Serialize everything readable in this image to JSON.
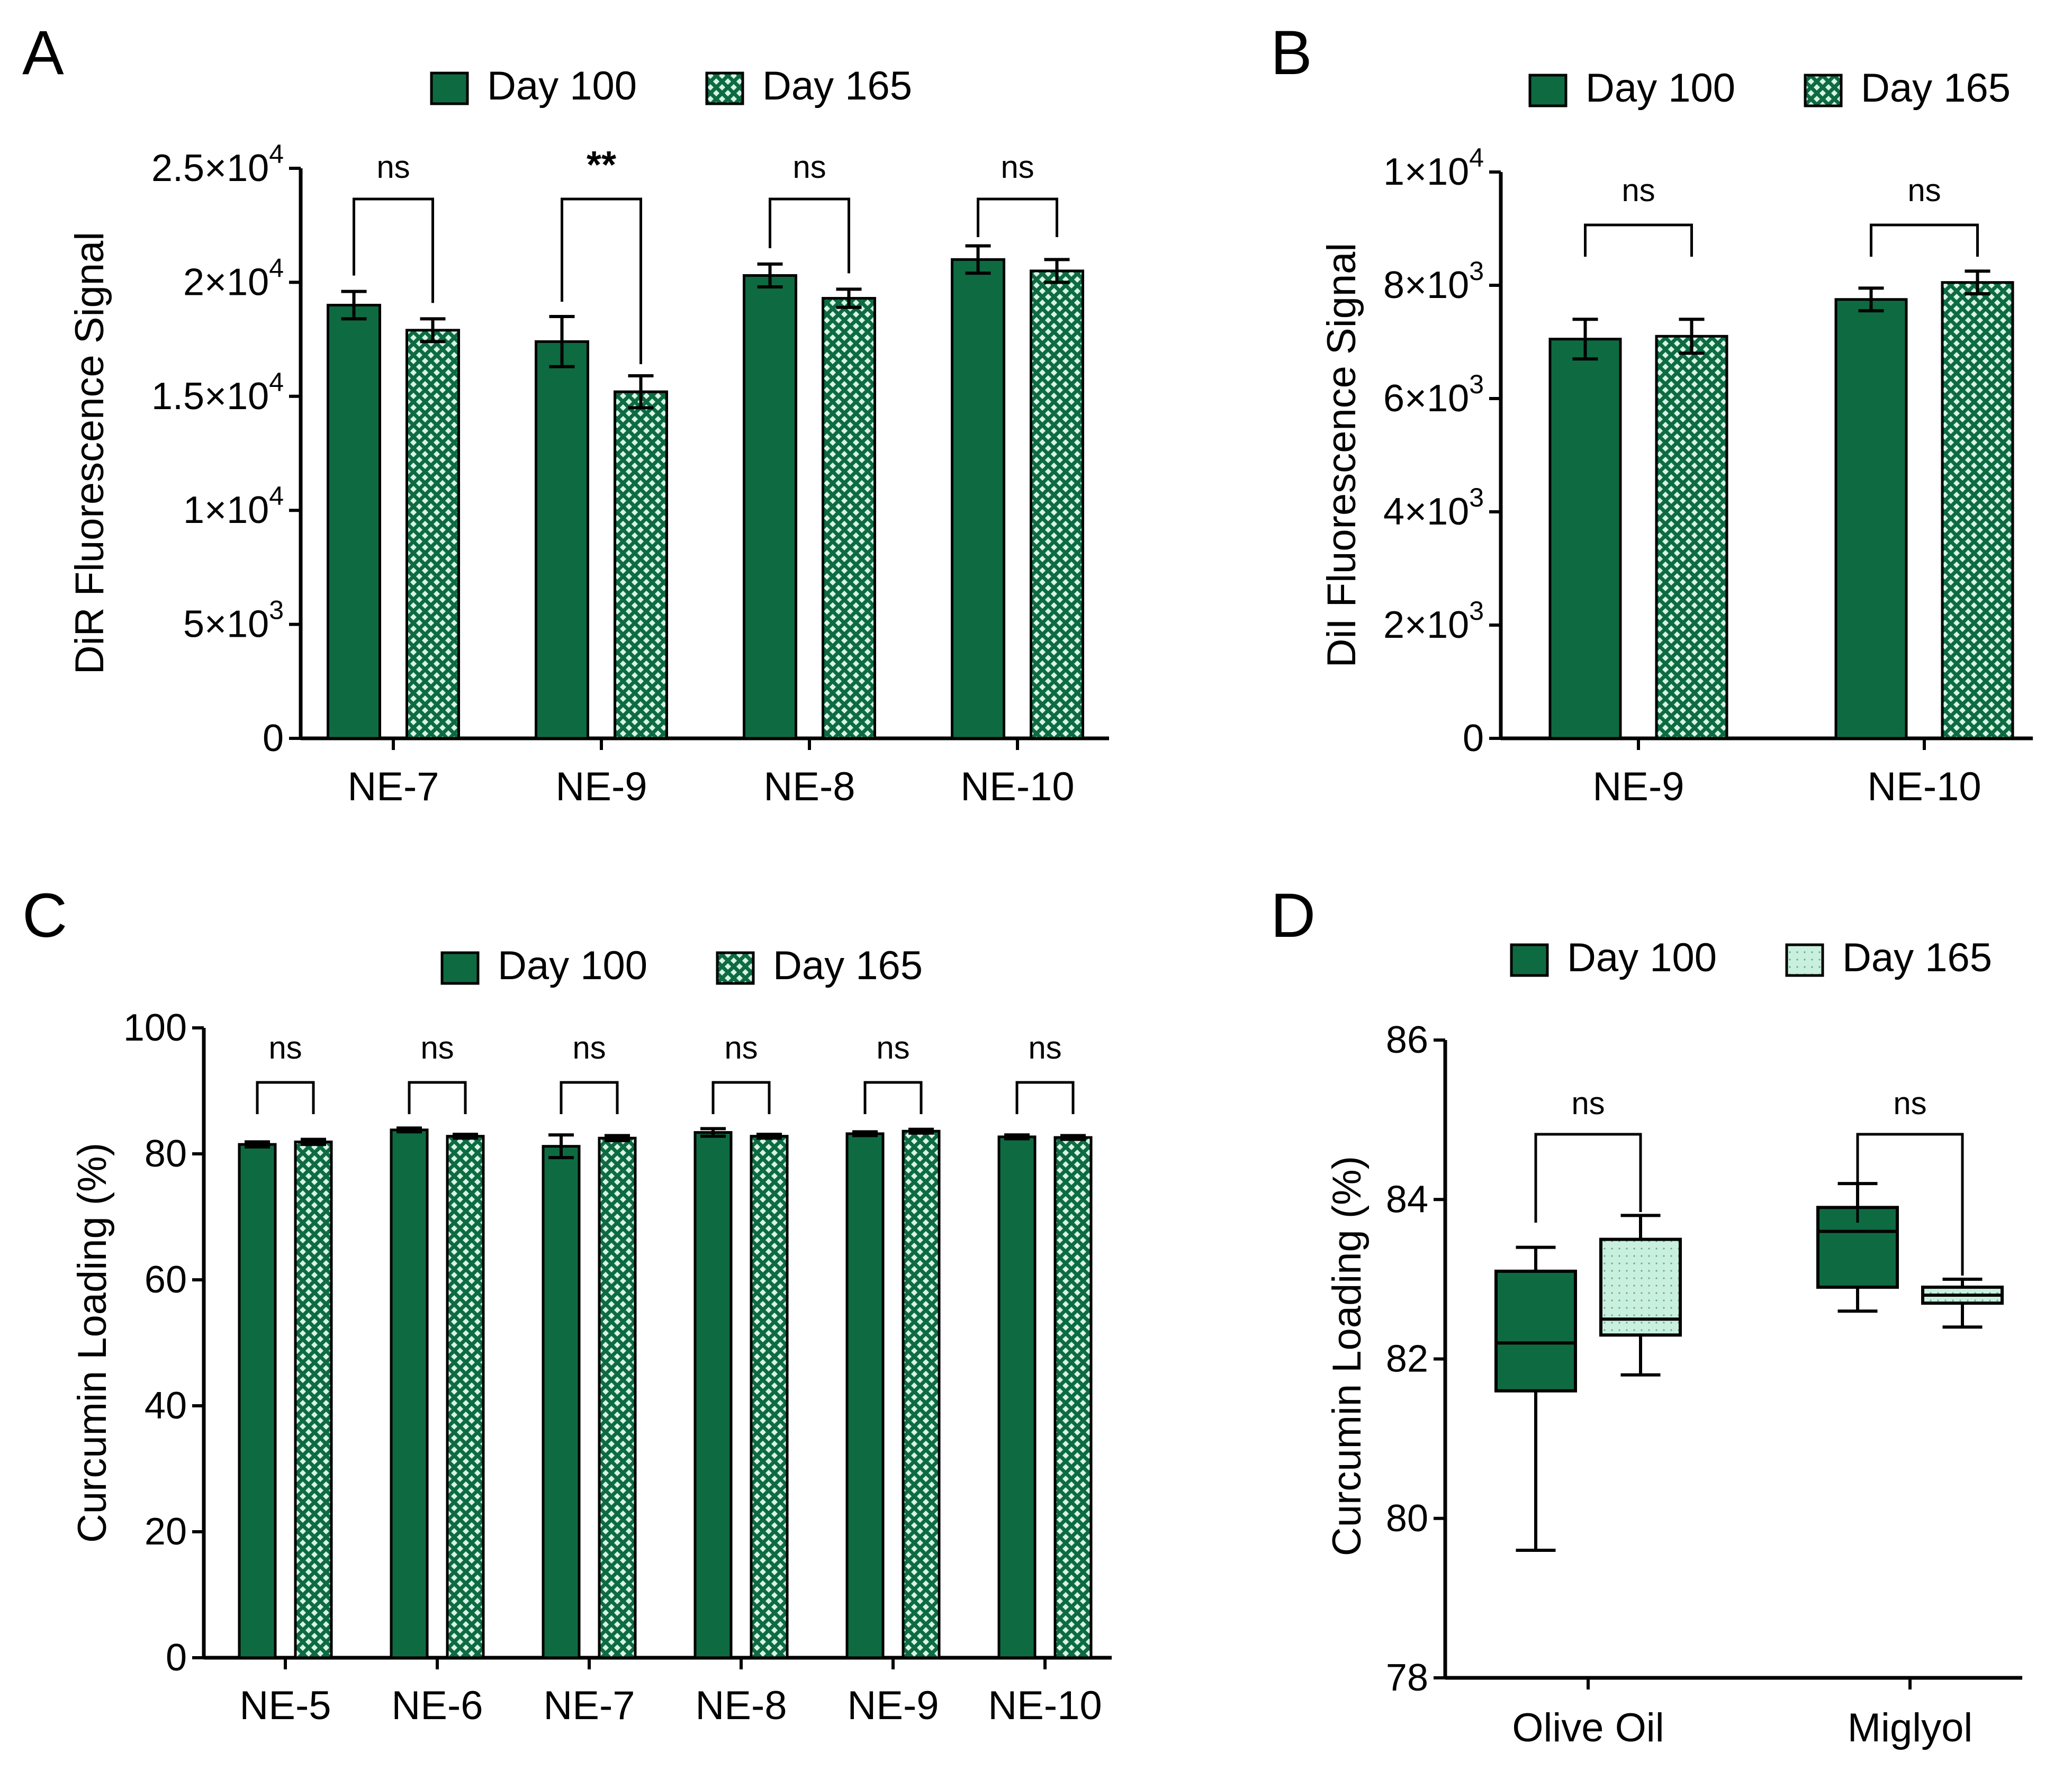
{
  "colors": {
    "day100": "#0e6b41",
    "day165_bg": "#d6f3e6",
    "day165_pattern": "#0e6b41",
    "box165": "#c9f0df"
  },
  "legend": {
    "day100": "Day 100",
    "day165": "Day 165"
  },
  "chart_data": [
    {
      "panel": "A",
      "type": "bar",
      "ylabel": "DiR Fluorescence Signal",
      "ylim": [
        0,
        25000
      ],
      "yticks": [
        {
          "value": 0,
          "label": "0"
        },
        {
          "value": 5000,
          "label": "5×10",
          "exp": "3"
        },
        {
          "value": 10000,
          "label": "1×10",
          "exp": "4"
        },
        {
          "value": 15000,
          "label": "1.5×10",
          "exp": "4"
        },
        {
          "value": 20000,
          "label": "2×10",
          "exp": "4"
        },
        {
          "value": 25000,
          "label": "2.5×10",
          "exp": "4"
        }
      ],
      "categories": [
        "NE-7",
        "NE-9",
        "NE-8",
        "NE-10"
      ],
      "series": [
        {
          "name": "Day 100",
          "values": [
            19000,
            17400,
            20300,
            21000
          ],
          "errors": [
            600,
            1100,
            500,
            600
          ]
        },
        {
          "name": "Day 165",
          "values": [
            17900,
            15200,
            19300,
            20500
          ],
          "errors": [
            500,
            700,
            400,
            500
          ]
        }
      ],
      "significance": [
        "ns",
        "**",
        "ns",
        "ns"
      ]
    },
    {
      "panel": "B",
      "type": "bar",
      "ylabel": "DiI Fluorescence Signal",
      "ylim": [
        0,
        10000
      ],
      "yticks": [
        {
          "value": 0,
          "label": "0"
        },
        {
          "value": 2000,
          "label": "2×10",
          "exp": "3"
        },
        {
          "value": 4000,
          "label": "4×10",
          "exp": "3"
        },
        {
          "value": 6000,
          "label": "6×10",
          "exp": "3"
        },
        {
          "value": 8000,
          "label": "8×10",
          "exp": "3"
        },
        {
          "value": 10000,
          "label": "1×10",
          "exp": "4"
        }
      ],
      "categories": [
        "NE-9",
        "NE-10"
      ],
      "series": [
        {
          "name": "Day 100",
          "values": [
            7050,
            7750
          ],
          "errors": [
            350,
            200
          ]
        },
        {
          "name": "Day 165",
          "values": [
            7100,
            8050
          ],
          "errors": [
            300,
            200
          ]
        }
      ],
      "significance": [
        "ns",
        "ns"
      ]
    },
    {
      "panel": "C",
      "type": "bar",
      "ylabel": "Curcumin Loading (%)",
      "ylim": [
        0,
        100
      ],
      "yticks": [
        {
          "value": 0,
          "label": "0"
        },
        {
          "value": 20,
          "label": "20"
        },
        {
          "value": 40,
          "label": "40"
        },
        {
          "value": 60,
          "label": "60"
        },
        {
          "value": 80,
          "label": "80"
        },
        {
          "value": 100,
          "label": "100"
        }
      ],
      "categories": [
        "NE-5",
        "NE-6",
        "NE-7",
        "NE-8",
        "NE-9",
        "NE-10"
      ],
      "series": [
        {
          "name": "Day 100",
          "values": [
            81.5,
            83.8,
            81.2,
            83.4,
            83.2,
            82.7
          ],
          "errors": [
            0.4,
            0.3,
            1.8,
            0.6,
            0.3,
            0.3
          ]
        },
        {
          "name": "Day 165",
          "values": [
            81.9,
            82.8,
            82.5,
            82.8,
            83.6,
            82.6
          ],
          "errors": [
            0.4,
            0.3,
            0.4,
            0.3,
            0.3,
            0.3
          ]
        }
      ],
      "significance": [
        "ns",
        "ns",
        "ns",
        "ns",
        "ns",
        "ns"
      ]
    },
    {
      "panel": "D",
      "type": "box",
      "ylabel": "Curcumin Loading (%)",
      "ylim": [
        78,
        86
      ],
      "yticks": [
        {
          "value": 78,
          "label": "78"
        },
        {
          "value": 80,
          "label": "80"
        },
        {
          "value": 82,
          "label": "82"
        },
        {
          "value": 84,
          "label": "84"
        },
        {
          "value": 86,
          "label": "86"
        }
      ],
      "categories": [
        "Olive Oil",
        "Miglyol"
      ],
      "series": [
        {
          "name": "Day 100",
          "boxes": [
            {
              "min": 79.6,
              "q1": 81.6,
              "median": 82.2,
              "q3": 83.1,
              "max": 83.4
            },
            {
              "min": 82.6,
              "q1": 82.9,
              "median": 83.6,
              "q3": 83.9,
              "max": 84.2
            }
          ]
        },
        {
          "name": "Day 165",
          "boxes": [
            {
              "min": 81.8,
              "q1": 82.3,
              "median": 82.5,
              "q3": 83.5,
              "max": 83.8
            },
            {
              "min": 82.4,
              "q1": 82.7,
              "median": 82.8,
              "q3": 82.9,
              "max": 83.0
            }
          ]
        }
      ],
      "significance": [
        "ns",
        "ns"
      ]
    }
  ]
}
